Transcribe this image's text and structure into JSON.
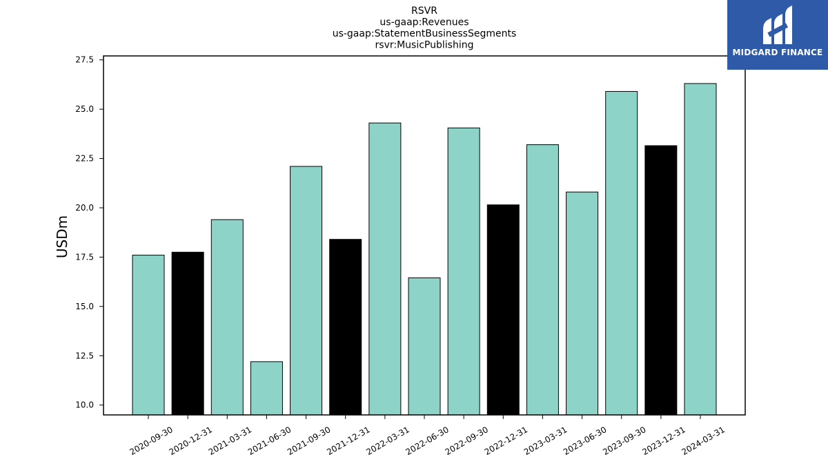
{
  "brand": {
    "name": "MIDGARD FINANCE",
    "background": "#2f5aa8"
  },
  "chart_data": {
    "type": "bar",
    "title_lines": [
      "RSVR",
      "us-gaap:Revenues",
      "us-gaap:StatementBusinessSegments",
      "rsvr:MusicPublishing"
    ],
    "xlabel": "",
    "ylabel": "USDm",
    "ylim": [
      9.5,
      27.7
    ],
    "yticks": [
      "10.0",
      "12.5",
      "15.0",
      "17.5",
      "20.0",
      "22.5",
      "25.0",
      "27.5"
    ],
    "grid": false,
    "categories": [
      "2020-09-30",
      "2020-12-31",
      "2021-03-31",
      "2021-06-30",
      "2021-09-30",
      "2021-12-31",
      "2022-03-31",
      "2022-06-30",
      "2022-09-30",
      "2022-12-31",
      "2023-03-31",
      "2023-06-30",
      "2023-09-30",
      "2023-12-31",
      "2024-03-31"
    ],
    "values": [
      17.6,
      17.75,
      19.4,
      12.2,
      22.1,
      18.4,
      24.3,
      16.45,
      24.05,
      20.15,
      23.2,
      20.8,
      25.9,
      23.15,
      26.3
    ],
    "bar_colors": [
      "#8dd3c7",
      "#000000",
      "#8dd3c7",
      "#8dd3c7",
      "#8dd3c7",
      "#000000",
      "#8dd3c7",
      "#8dd3c7",
      "#8dd3c7",
      "#000000",
      "#8dd3c7",
      "#8dd3c7",
      "#8dd3c7",
      "#000000",
      "#8dd3c7"
    ]
  }
}
